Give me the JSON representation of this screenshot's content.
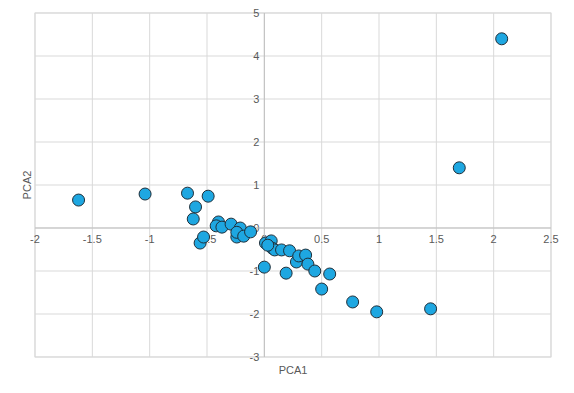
{
  "chart_data": {
    "type": "scatter",
    "x_label": "PCA1",
    "y_label": "PCA2",
    "x": [
      -1.62,
      -1.04,
      -0.67,
      -0.49,
      -0.6,
      -0.62,
      -0.56,
      -0.53,
      -0.4,
      -0.42,
      -0.37,
      -0.29,
      -0.24,
      -0.21,
      -0.24,
      -0.18,
      -0.12,
      0.01,
      0.06,
      0.07,
      0.09,
      0.15,
      0.22,
      0.28,
      0.3,
      0.36,
      0.38,
      0.44,
      0.19,
      0.0,
      0.5,
      0.57,
      0.77,
      0.98,
      1.45,
      1.7,
      2.07,
      0.03
    ],
    "values": [
      0.65,
      0.79,
      0.81,
      0.74,
      0.49,
      0.21,
      -0.35,
      -0.21,
      0.14,
      0.05,
      0.02,
      0.09,
      -0.21,
      0.0,
      -0.1,
      -0.19,
      -0.09,
      -0.35,
      -0.3,
      -0.47,
      -0.51,
      -0.51,
      -0.53,
      -0.79,
      -0.65,
      -0.63,
      -0.84,
      -1.0,
      -1.05,
      -0.91,
      -1.42,
      -1.07,
      -1.72,
      -1.95,
      -1.88,
      1.4,
      4.4,
      -0.4
    ],
    "color": "#1ea7e1",
    "marker": "circle",
    "xlim": [
      -2,
      2.5
    ],
    "xticks": [
      -2,
      -1.5,
      -1,
      -0.5,
      0,
      0.5,
      1,
      1.5,
      2,
      2.5
    ],
    "ylim": [
      -3,
      5
    ],
    "yticks": [
      -3,
      -2,
      -1,
      0,
      1,
      2,
      3,
      4,
      5
    ],
    "grid": true
  }
}
